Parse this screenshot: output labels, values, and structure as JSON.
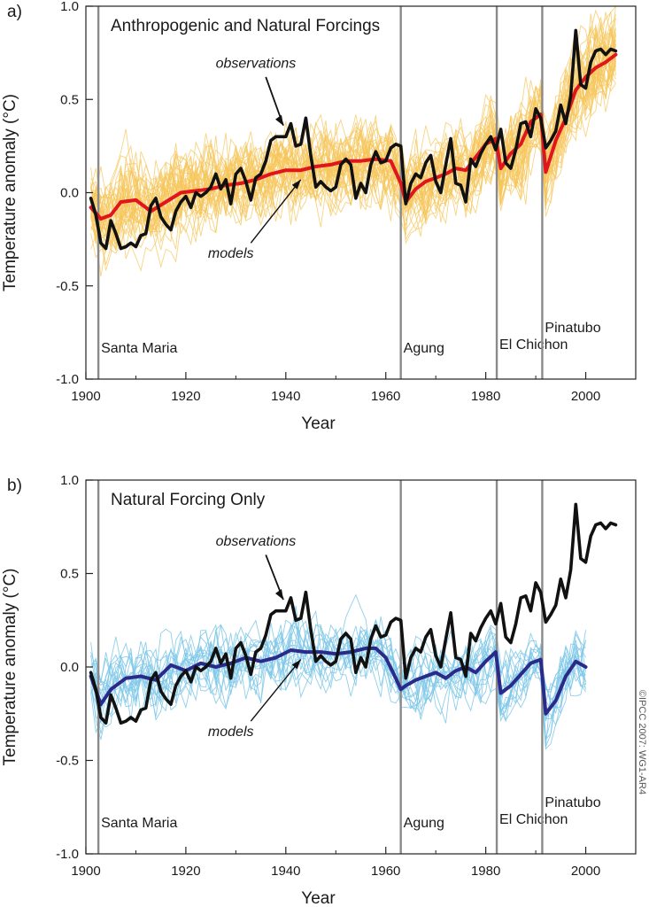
{
  "credit": "©IPCC 2007: WG1-AR4",
  "volcano_colors": "#8a8a8a",
  "chart_data": [
    {
      "type": "line",
      "panel_letter": "a)",
      "title": "Anthropogenic and Natural Forcings",
      "xlabel": "Year",
      "ylabel": "Temperature anomaly (°C)",
      "xlim": [
        1900,
        2010
      ],
      "ylim": [
        -1.0,
        1.0
      ],
      "xticks": [
        1900,
        1920,
        1940,
        1960,
        1980,
        2000
      ],
      "yticks": [
        "-1.0",
        "-0.5",
        "0.0",
        "0.5",
        "1.0"
      ],
      "grid": false,
      "volcanoes": [
        {
          "name": "Santa Maria",
          "year": 1902.5,
          "label_y": -0.83
        },
        {
          "name": "Agung",
          "year": 1963,
          "label_y": -0.83
        },
        {
          "name": "El Chichon",
          "year": 1982.2,
          "label_y": -0.81
        },
        {
          "name": "Pinatubo",
          "year": 1991.3,
          "label_y": -0.72
        }
      ],
      "annotations": [
        {
          "text": "observations",
          "x": 1934,
          "y": 0.67
        },
        {
          "text": "models",
          "x": 1929,
          "y": -0.35
        }
      ],
      "ensemble_color": "#f5c65a",
      "series": [
        {
          "name": "observations",
          "color": "#111111",
          "x": [
            1901,
            1902,
            1903,
            1904,
            1905,
            1906,
            1907,
            1908,
            1909,
            1910,
            1911,
            1912,
            1913,
            1914,
            1915,
            1916,
            1917,
            1918,
            1919,
            1920,
            1921,
            1922,
            1923,
            1924,
            1925,
            1926,
            1927,
            1928,
            1929,
            1930,
            1931,
            1932,
            1933,
            1934,
            1935,
            1936,
            1937,
            1938,
            1939,
            1940,
            1941,
            1942,
            1943,
            1944,
            1945,
            1946,
            1947,
            1948,
            1949,
            1950,
            1951,
            1952,
            1953,
            1954,
            1955,
            1956,
            1957,
            1958,
            1959,
            1960,
            1961,
            1962,
            1963,
            1964,
            1965,
            1966,
            1967,
            1968,
            1969,
            1970,
            1971,
            1972,
            1973,
            1974,
            1975,
            1976,
            1977,
            1978,
            1979,
            1980,
            1981,
            1982,
            1983,
            1984,
            1985,
            1986,
            1987,
            1988,
            1989,
            1990,
            1991,
            1992,
            1993,
            1994,
            1995,
            1996,
            1997,
            1998,
            1999,
            2000,
            2001,
            2002,
            2003,
            2004,
            2005,
            2006
          ],
          "y": [
            -0.03,
            -0.12,
            -0.27,
            -0.3,
            -0.15,
            -0.22,
            -0.3,
            -0.29,
            -0.27,
            -0.29,
            -0.23,
            -0.22,
            -0.07,
            -0.03,
            -0.13,
            -0.17,
            -0.2,
            -0.1,
            -0.05,
            -0.02,
            -0.08,
            0.0,
            -0.02,
            0.0,
            0.03,
            0.1,
            0.02,
            0.07,
            -0.06,
            0.1,
            0.13,
            0.06,
            -0.04,
            0.08,
            0.1,
            0.17,
            0.28,
            0.3,
            0.3,
            0.3,
            0.37,
            0.25,
            0.26,
            0.4,
            0.2,
            0.03,
            0.06,
            0.03,
            0.01,
            0.03,
            0.15,
            0.18,
            0.15,
            -0.03,
            0.05,
            0.0,
            0.15,
            0.22,
            0.16,
            0.17,
            0.24,
            0.26,
            0.25,
            -0.06,
            0.05,
            0.1,
            0.08,
            0.16,
            0.2,
            0.06,
            0.0,
            0.15,
            0.29,
            0.05,
            0.04,
            -0.05,
            0.18,
            0.14,
            0.21,
            0.26,
            0.3,
            0.23,
            0.34,
            0.16,
            0.13,
            0.23,
            0.37,
            0.38,
            0.3,
            0.45,
            0.4,
            0.24,
            0.28,
            0.33,
            0.47,
            0.37,
            0.52,
            0.87,
            0.58,
            0.56,
            0.7,
            0.76,
            0.77,
            0.74,
            0.77,
            0.76
          ]
        },
        {
          "name": "models",
          "color": "#e0161c",
          "x": [
            1901,
            1903,
            1905,
            1907,
            1910,
            1913,
            1916,
            1919,
            1922,
            1925,
            1928,
            1931,
            1934,
            1937,
            1940,
            1943,
            1946,
            1949,
            1952,
            1955,
            1958,
            1961,
            1963,
            1964,
            1966,
            1968,
            1970,
            1972,
            1974,
            1976,
            1978,
            1980,
            1982,
            1983,
            1985,
            1987,
            1989,
            1991,
            1992,
            1994,
            1996,
            1998,
            2000,
            2002,
            2004,
            2006
          ],
          "y": [
            -0.08,
            -0.14,
            -0.12,
            -0.05,
            -0.04,
            -0.1,
            -0.05,
            0.0,
            0.01,
            0.02,
            0.04,
            0.05,
            0.07,
            0.1,
            0.12,
            0.12,
            0.14,
            0.15,
            0.17,
            0.17,
            0.18,
            0.17,
            0.05,
            -0.05,
            0.02,
            0.06,
            0.08,
            0.1,
            0.13,
            0.12,
            0.19,
            0.26,
            0.29,
            0.13,
            0.21,
            0.26,
            0.38,
            0.42,
            0.11,
            0.28,
            0.4,
            0.55,
            0.62,
            0.67,
            0.7,
            0.74
          ]
        }
      ]
    },
    {
      "type": "line",
      "panel_letter": "b)",
      "title": "Natural Forcing Only",
      "xlabel": "Year",
      "ylabel": "Temperature anomaly (°C)",
      "xlim": [
        1900,
        2010
      ],
      "ylim": [
        -1.0,
        1.0
      ],
      "xticks": [
        1900,
        1920,
        1940,
        1960,
        1980,
        2000
      ],
      "yticks": [
        "-1.0",
        "-0.5",
        "0.0",
        "0.5",
        "1.0"
      ],
      "grid": false,
      "volcanoes": [
        {
          "name": "Santa Maria",
          "year": 1902.5,
          "label_y": -0.83
        },
        {
          "name": "Agung",
          "year": 1963,
          "label_y": -0.83
        },
        {
          "name": "El Chichon",
          "year": 1982.2,
          "label_y": -0.81
        },
        {
          "name": "Pinatubo",
          "year": 1991.3,
          "label_y": -0.72
        }
      ],
      "annotations": [
        {
          "text": "observations",
          "x": 1934,
          "y": 0.65
        },
        {
          "text": "models",
          "x": 1929,
          "y": -0.37
        }
      ],
      "ensemble_color": "#7cc7e8",
      "series": [
        {
          "name": "observations",
          "color": "#111111",
          "x": [
            1901,
            1902,
            1903,
            1904,
            1905,
            1906,
            1907,
            1908,
            1909,
            1910,
            1911,
            1912,
            1913,
            1914,
            1915,
            1916,
            1917,
            1918,
            1919,
            1920,
            1921,
            1922,
            1923,
            1924,
            1925,
            1926,
            1927,
            1928,
            1929,
            1930,
            1931,
            1932,
            1933,
            1934,
            1935,
            1936,
            1937,
            1938,
            1939,
            1940,
            1941,
            1942,
            1943,
            1944,
            1945,
            1946,
            1947,
            1948,
            1949,
            1950,
            1951,
            1952,
            1953,
            1954,
            1955,
            1956,
            1957,
            1958,
            1959,
            1960,
            1961,
            1962,
            1963,
            1964,
            1965,
            1966,
            1967,
            1968,
            1969,
            1970,
            1971,
            1972,
            1973,
            1974,
            1975,
            1976,
            1977,
            1978,
            1979,
            1980,
            1981,
            1982,
            1983,
            1984,
            1985,
            1986,
            1987,
            1988,
            1989,
            1990,
            1991,
            1992,
            1993,
            1994,
            1995,
            1996,
            1997,
            1998,
            1999,
            2000,
            2001,
            2002,
            2003,
            2004,
            2005,
            2006
          ],
          "y": [
            -0.03,
            -0.12,
            -0.27,
            -0.3,
            -0.15,
            -0.22,
            -0.3,
            -0.29,
            -0.27,
            -0.29,
            -0.23,
            -0.22,
            -0.07,
            -0.03,
            -0.13,
            -0.17,
            -0.2,
            -0.1,
            -0.05,
            -0.02,
            -0.08,
            0.0,
            -0.02,
            0.0,
            0.03,
            0.1,
            0.02,
            0.07,
            -0.06,
            0.1,
            0.13,
            0.06,
            -0.04,
            0.08,
            0.1,
            0.17,
            0.28,
            0.3,
            0.3,
            0.3,
            0.37,
            0.25,
            0.26,
            0.4,
            0.2,
            0.03,
            0.06,
            0.03,
            0.01,
            0.03,
            0.15,
            0.18,
            0.15,
            -0.03,
            0.05,
            0.0,
            0.15,
            0.22,
            0.16,
            0.17,
            0.24,
            0.26,
            0.25,
            -0.06,
            0.05,
            0.1,
            0.08,
            0.16,
            0.2,
            0.06,
            0.0,
            0.15,
            0.29,
            0.05,
            0.04,
            -0.05,
            0.18,
            0.14,
            0.21,
            0.26,
            0.3,
            0.23,
            0.34,
            0.16,
            0.13,
            0.23,
            0.37,
            0.38,
            0.3,
            0.45,
            0.4,
            0.24,
            0.28,
            0.33,
            0.47,
            0.37,
            0.52,
            0.87,
            0.58,
            0.56,
            0.7,
            0.76,
            0.77,
            0.74,
            0.77,
            0.76
          ]
        },
        {
          "name": "models",
          "color": "#2a2a8a",
          "x": [
            1901,
            1903,
            1905,
            1908,
            1911,
            1914,
            1917,
            1920,
            1923,
            1926,
            1929,
            1932,
            1935,
            1938,
            1941,
            1944,
            1947,
            1950,
            1953,
            1956,
            1958,
            1960,
            1962,
            1963,
            1964,
            1966,
            1968,
            1970,
            1972,
            1974,
            1976,
            1978,
            1980,
            1982,
            1983,
            1985,
            1987,
            1989,
            1991,
            1992,
            1994,
            1996,
            1998,
            2000
          ],
          "y": [
            -0.05,
            -0.2,
            -0.12,
            -0.06,
            -0.05,
            -0.07,
            0.01,
            -0.02,
            0.02,
            0.0,
            0.02,
            0.05,
            0.03,
            0.05,
            0.09,
            0.08,
            0.08,
            0.07,
            0.08,
            0.1,
            0.1,
            0.05,
            -0.06,
            -0.12,
            -0.1,
            -0.07,
            -0.05,
            -0.03,
            -0.06,
            -0.02,
            0.0,
            -0.03,
            0.03,
            0.08,
            -0.14,
            -0.1,
            -0.04,
            0.02,
            0.04,
            -0.25,
            -0.18,
            -0.05,
            0.03,
            0.0
          ]
        }
      ]
    }
  ]
}
